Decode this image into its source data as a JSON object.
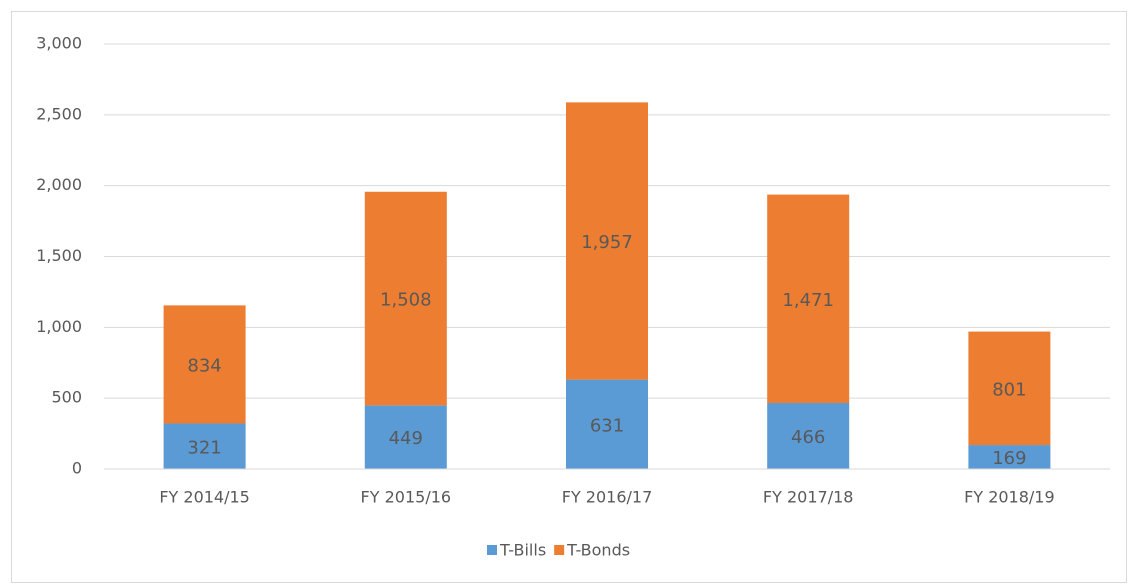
{
  "chart_data": {
    "type": "bar",
    "stacked": true,
    "categories": [
      "FY 2014/15",
      "FY 2015/16",
      "FY 2016/17",
      "FY 2017/18",
      "FY 2018/19"
    ],
    "series": [
      {
        "name": "T-Bills",
        "color": "#5b9bd5",
        "values": [
          321,
          449,
          631,
          466,
          169
        ]
      },
      {
        "name": "T-Bonds",
        "color": "#ed7d31",
        "values": [
          834,
          1508,
          1957,
          1471,
          801
        ],
        "value_labels": [
          "834",
          "1,508",
          "1,957",
          "1,471",
          "801"
        ]
      }
    ],
    "ylim": [
      0,
      3000
    ],
    "yticks": [
      0,
      500,
      {
        "value": 1000,
        "label": "1,000"
      },
      {
        "value": 1500,
        "label": "1,500"
      },
      {
        "value": 2000,
        "label": "2,000"
      },
      {
        "value": 2500,
        "label": "2,500"
      },
      {
        "value": 3000,
        "label": "3,000"
      }
    ],
    "grid": true,
    "legend": "bottom"
  }
}
